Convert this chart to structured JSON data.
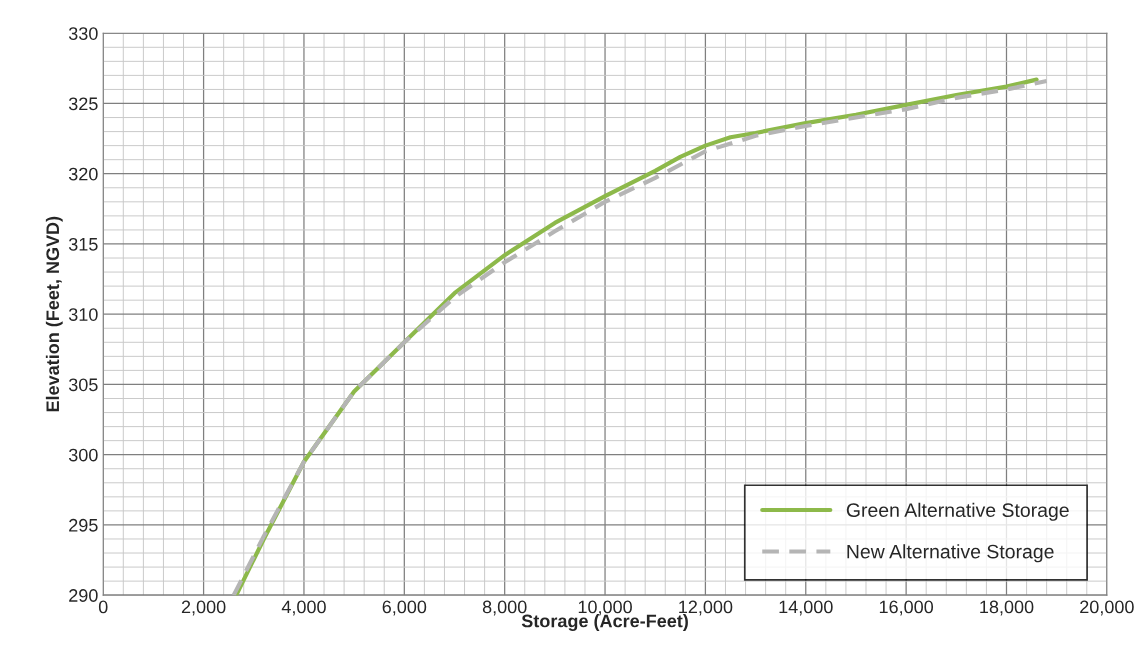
{
  "chart_data": {
    "type": "line",
    "xlabel": "Storage (Acre-Feet)",
    "ylabel": "Elevation (Feet, NGVD)",
    "xlim": [
      0,
      20000
    ],
    "ylim": [
      290,
      330
    ],
    "xticks": [
      {
        "value": 0,
        "label": "0"
      },
      {
        "value": 2000,
        "label": "2,000"
      },
      {
        "value": 4000,
        "label": "4,000"
      },
      {
        "value": 6000,
        "label": "6,000"
      },
      {
        "value": 8000,
        "label": "8,000"
      },
      {
        "value": 10000,
        "label": "10,000"
      },
      {
        "value": 12000,
        "label": "12,000"
      },
      {
        "value": 14000,
        "label": "14,000"
      },
      {
        "value": 16000,
        "label": "16,000"
      },
      {
        "value": 18000,
        "label": "18,000"
      },
      {
        "value": 20000,
        "label": "20,000"
      }
    ],
    "yticks": [
      290,
      295,
      300,
      305,
      310,
      315,
      320,
      325,
      330
    ],
    "grid": true,
    "legend": "bottom right",
    "marker": "none",
    "series": [
      {
        "name": "Green Alternative Storage",
        "color": "#8db94a",
        "line_style": "solid",
        "x": [
          2650,
          3200,
          4000,
          4700,
          5000,
          6000,
          7000,
          8000,
          9000,
          10000,
          11000,
          11500,
          12000,
          12500,
          13000,
          14000,
          15000,
          16000,
          17000,
          18000,
          18600
        ],
        "values": [
          290,
          294,
          299.5,
          303,
          304.5,
          308,
          311.5,
          314.2,
          316.5,
          318.4,
          320.2,
          321.2,
          322,
          322.6,
          322.9,
          323.6,
          324.2,
          324.9,
          325.6,
          326.2,
          326.7
        ]
      },
      {
        "name": "New Alternative Storage",
        "color": "#b5b5b5",
        "line_style": "dashed",
        "x": [
          2600,
          3200,
          4000,
          5000,
          6000,
          7000,
          8000,
          9000,
          10000,
          11000,
          12000,
          13000,
          14000,
          15000,
          16000,
          17000,
          18000,
          18800
        ],
        "values": [
          290,
          294.2,
          299.5,
          304.5,
          308,
          311.2,
          313.7,
          315.9,
          318,
          319.7,
          321.6,
          322.7,
          323.4,
          324,
          324.6,
          325.4,
          326,
          326.6
        ]
      }
    ]
  }
}
